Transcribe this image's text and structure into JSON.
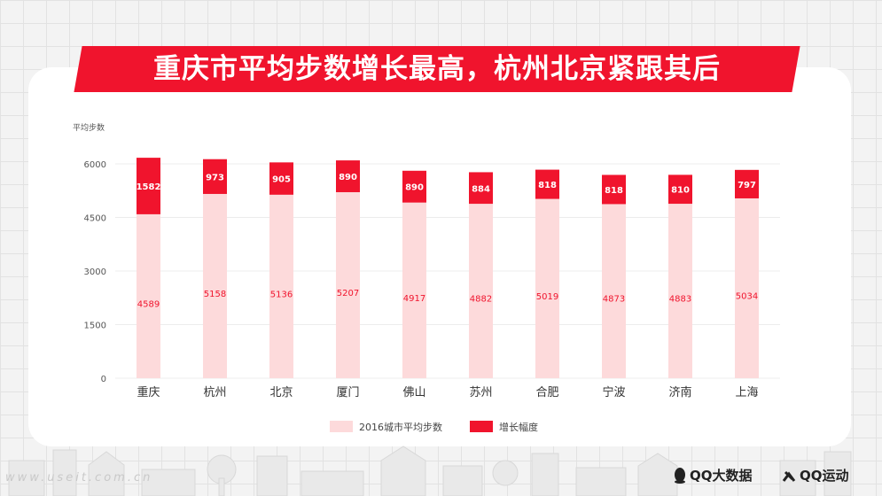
{
  "title": "重庆市平均步数增长最高，杭州北京紧跟其后",
  "watermark": "www.useit.com.cn",
  "logos": {
    "qq_big_data": "QQ大数据",
    "qq_sport": "QQ运动"
  },
  "colors": {
    "base": "#fddadb",
    "growth": "#f0142d",
    "base_label": "#f0142d",
    "growth_label": "#ffffff",
    "axis_text": "#555555",
    "grid": "#ececec"
  },
  "chart_data": {
    "type": "bar",
    "stacked": true,
    "title": "重庆市平均步数增长最高，杭州北京紧跟其后",
    "ylabel": "平均步数",
    "xlabel": "",
    "ylim": [
      0,
      6000
    ],
    "yticks": [
      0,
      1500,
      3000,
      4500,
      6000
    ],
    "grid": true,
    "legend_position": "bottom-center",
    "categories": [
      "重庆",
      "杭州",
      "北京",
      "厦门",
      "佛山",
      "苏州",
      "合肥",
      "宁波",
      "济南",
      "上海"
    ],
    "series": [
      {
        "name": "2016城市平均步数",
        "values": [
          4589,
          5158,
          5136,
          5207,
          4917,
          4882,
          5019,
          4873,
          4883,
          5034
        ]
      },
      {
        "name": "增长幅度",
        "values": [
          1582,
          973,
          905,
          890,
          890,
          884,
          818,
          818,
          810,
          797
        ]
      }
    ]
  }
}
